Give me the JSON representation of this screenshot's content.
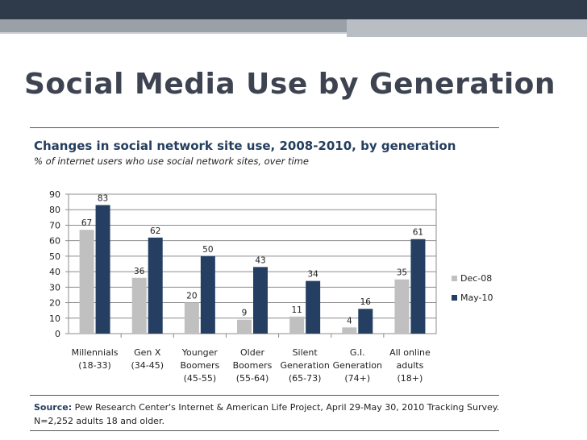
{
  "slide": {
    "title": "Social Media Use by Generation"
  },
  "colors": {
    "series_dec08": "#c0c0c0",
    "series_may10": "#253f63",
    "title_text": "#3d4350",
    "chart_title_text": "#243e5e"
  },
  "chart_data": {
    "type": "bar",
    "title": "Changes in social network site use, 2008-2010, by generation",
    "subtitle": "% of internet users who use social network sites, over time",
    "categories": [
      [
        "Millennials",
        "(18-33)"
      ],
      [
        "Gen X",
        "(34-45)"
      ],
      [
        "Younger",
        "Boomers",
        "(45-55)"
      ],
      [
        "Older",
        "Boomers",
        "(55-64)"
      ],
      [
        "Silent",
        "Generation",
        "(65-73)"
      ],
      [
        "G.I.",
        "Generation",
        "(74+)"
      ],
      [
        "All online",
        "adults",
        "(18+)"
      ]
    ],
    "series": [
      {
        "name": "Dec-08",
        "values": [
          67,
          36,
          20,
          9,
          11,
          4,
          35
        ]
      },
      {
        "name": "May-10",
        "values": [
          83,
          62,
          50,
          43,
          34,
          16,
          61
        ]
      }
    ],
    "ylim": [
      0,
      90
    ],
    "yticks": [
      0,
      10,
      20,
      30,
      40,
      50,
      60,
      70,
      80,
      90
    ],
    "grid": true,
    "legend": "right",
    "xlabel": "",
    "ylabel": ""
  },
  "source": {
    "label": "Source:",
    "line1": "Pew Research Center's Internet & American Life Project, April 29-May 30, 2010 Tracking Survey.",
    "line2": "N=2,252 adults 18 and older."
  }
}
